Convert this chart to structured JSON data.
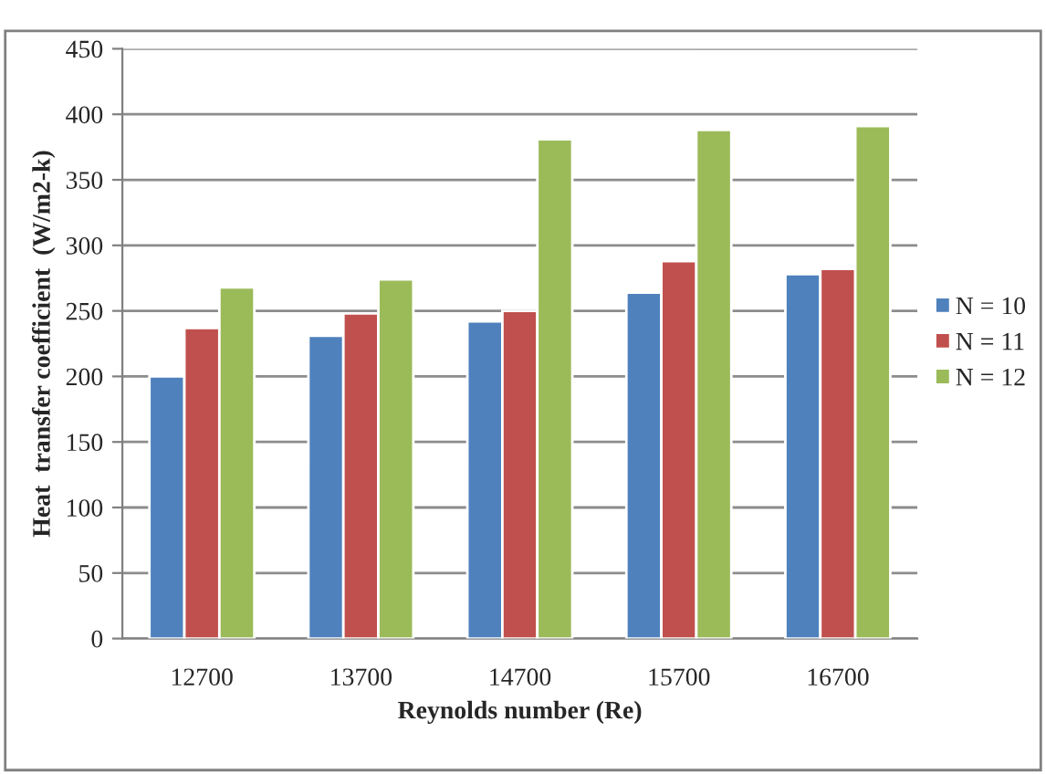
{
  "chart_data": {
    "type": "bar",
    "xlabel": "Reynolds number (Re)",
    "ylabel": "Heat  transfer coefficient  (W/m2-k)",
    "categories": [
      "12700",
      "13700",
      "14700",
      "15700",
      "16700"
    ],
    "series": [
      {
        "name": "N = 10",
        "color": "#4f81bd",
        "values": [
          200,
          231,
          242,
          264,
          278
        ]
      },
      {
        "name": "N = 11",
        "color": "#c0504d",
        "values": [
          237,
          248,
          250,
          288,
          282
        ]
      },
      {
        "name": "N = 12",
        "color": "#9bbb59",
        "values": [
          268,
          274,
          381,
          388,
          391
        ]
      }
    ],
    "ylim": [
      0,
      450
    ],
    "yticks": [
      0,
      50,
      100,
      150,
      200,
      250,
      300,
      350,
      400,
      450
    ],
    "grid": "y",
    "legend": "right"
  }
}
